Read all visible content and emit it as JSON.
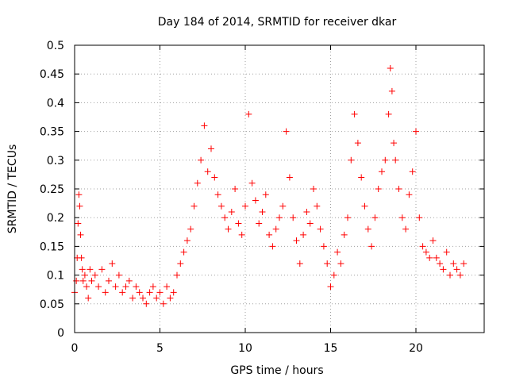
{
  "chart_data": {
    "type": "scatter",
    "title": "Day 184 of 2014, SRMTID for receiver dkar",
    "xlabel": "GPS time / hours",
    "ylabel": "SRMTID / TECUs",
    "xlim": [
      0,
      24
    ],
    "ylim": [
      0,
      0.5
    ],
    "x_ticks": [
      0,
      5,
      10,
      15,
      20
    ],
    "x_tick_labels": [
      "0",
      "5",
      "10",
      "15",
      "20"
    ],
    "y_ticks": [
      0,
      0.05,
      0.1,
      0.15,
      0.2,
      0.25,
      0.3,
      0.35,
      0.4,
      0.45,
      0.5
    ],
    "y_tick_labels": [
      "0",
      "0.05",
      "0.1",
      "0.15",
      "0.2",
      "0.25",
      "0.3",
      "0.35",
      "0.4",
      "0.45",
      "0.5"
    ],
    "grid": true,
    "marker": "+",
    "color": "#ff0000",
    "series": [
      {
        "name": "SRMTID",
        "x": [
          0.0,
          0.1,
          0.15,
          0.2,
          0.25,
          0.3,
          0.35,
          0.4,
          0.45,
          0.5,
          0.6,
          0.7,
          0.8,
          0.9,
          1.0,
          1.2,
          1.4,
          1.6,
          1.8,
          2.0,
          2.2,
          2.4,
          2.6,
          2.8,
          3.0,
          3.2,
          3.4,
          3.6,
          3.8,
          4.0,
          4.2,
          4.4,
          4.6,
          4.8,
          5.0,
          5.2,
          5.4,
          5.6,
          5.8,
          6.0,
          6.2,
          6.4,
          6.6,
          6.8,
          7.0,
          7.2,
          7.4,
          7.6,
          7.8,
          8.0,
          8.2,
          8.4,
          8.6,
          8.8,
          9.0,
          9.2,
          9.4,
          9.6,
          9.8,
          10.0,
          10.2,
          10.4,
          10.6,
          10.8,
          11.0,
          11.2,
          11.4,
          11.6,
          11.8,
          12.0,
          12.2,
          12.4,
          12.6,
          12.8,
          13.0,
          13.2,
          13.4,
          13.6,
          13.8,
          14.0,
          14.2,
          14.4,
          14.6,
          14.8,
          15.0,
          15.2,
          15.4,
          15.6,
          15.8,
          16.0,
          16.2,
          16.4,
          16.6,
          16.8,
          17.0,
          17.2,
          17.4,
          17.6,
          17.8,
          18.0,
          18.2,
          18.4,
          18.5,
          18.6,
          18.7,
          18.8,
          19.0,
          19.2,
          19.4,
          19.6,
          19.8,
          20.0,
          20.2,
          20.4,
          20.6,
          20.8,
          21.0,
          21.2,
          21.4,
          21.6,
          21.8,
          22.0,
          22.2,
          22.4,
          22.6,
          22.8
        ],
        "y": [
          0.07,
          0.09,
          0.13,
          0.19,
          0.24,
          0.22,
          0.17,
          0.13,
          0.11,
          0.09,
          0.1,
          0.08,
          0.06,
          0.11,
          0.09,
          0.1,
          0.08,
          0.11,
          0.07,
          0.09,
          0.12,
          0.08,
          0.1,
          0.07,
          0.08,
          0.09,
          0.06,
          0.08,
          0.07,
          0.06,
          0.05,
          0.07,
          0.08,
          0.06,
          0.07,
          0.05,
          0.08,
          0.06,
          0.07,
          0.1,
          0.12,
          0.14,
          0.16,
          0.18,
          0.22,
          0.26,
          0.3,
          0.36,
          0.28,
          0.32,
          0.27,
          0.24,
          0.22,
          0.2,
          0.18,
          0.21,
          0.25,
          0.19,
          0.17,
          0.22,
          0.38,
          0.26,
          0.23,
          0.19,
          0.21,
          0.24,
          0.17,
          0.15,
          0.18,
          0.2,
          0.22,
          0.35,
          0.27,
          0.2,
          0.16,
          0.12,
          0.17,
          0.21,
          0.19,
          0.25,
          0.22,
          0.18,
          0.15,
          0.12,
          0.08,
          0.1,
          0.14,
          0.12,
          0.17,
          0.2,
          0.3,
          0.38,
          0.33,
          0.27,
          0.22,
          0.18,
          0.15,
          0.2,
          0.25,
          0.28,
          0.3,
          0.38,
          0.46,
          0.42,
          0.33,
          0.3,
          0.25,
          0.2,
          0.18,
          0.24,
          0.28,
          0.35,
          0.2,
          0.15,
          0.14,
          0.13,
          0.16,
          0.13,
          0.12,
          0.11,
          0.14,
          0.1,
          0.12,
          0.11,
          0.1,
          0.12
        ]
      }
    ]
  }
}
